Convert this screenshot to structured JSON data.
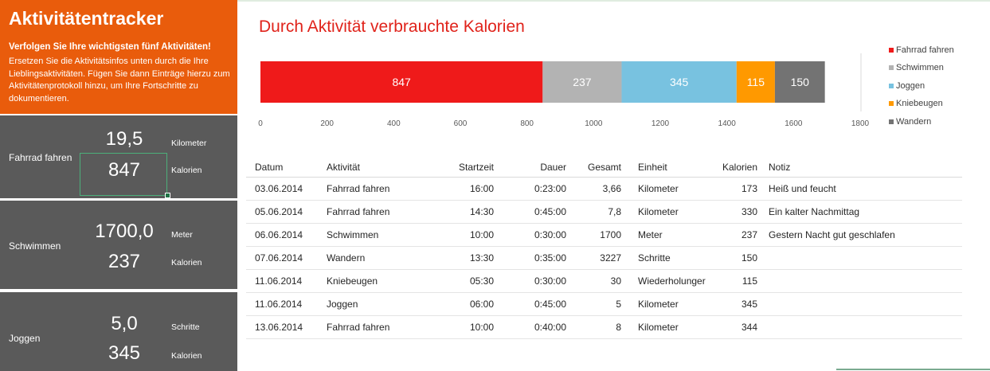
{
  "header": {
    "title": "Aktivitätentracker",
    "subtitle": "Verfolgen Sie Ihre wichtigsten fünf Aktivitäten!",
    "description": "Ersetzen Sie die Aktivitätsinfos unten durch die Ihre Lieblingsaktivitäten. Fügen Sie dann Einträge hierzu zum Aktivitätenprotokoll hinzu, um Ihre Fortschritte zu dokumentieren."
  },
  "activities": [
    {
      "name": "Fahrrad fahren",
      "value1": "19,5",
      "unit1": "Kilometer",
      "value2": "847",
      "unit2": "Kalorien"
    },
    {
      "name": "Schwimmen",
      "value1": "1700,0",
      "unit1": "Meter",
      "value2": "237",
      "unit2": "Kalorien"
    },
    {
      "name": "Joggen",
      "value1": "5,0",
      "unit1": "Schritte",
      "value2": "345",
      "unit2": "Kalorien"
    }
  ],
  "chart_data": {
    "type": "bar",
    "stacked": true,
    "orientation": "horizontal",
    "title": "Durch Aktivität verbrauchte Kalorien",
    "series": [
      {
        "name": "Fahrrad fahren",
        "values": [
          847
        ],
        "color": "#ef1a1a"
      },
      {
        "name": "Schwimmen",
        "values": [
          237
        ],
        "color": "#b3b3b3"
      },
      {
        "name": "Joggen",
        "values": [
          345
        ],
        "color": "#78c2e0"
      },
      {
        "name": "Kniebeugen",
        "values": [
          115
        ],
        "color": "#ff9900"
      },
      {
        "name": "Wandern",
        "values": [
          150
        ],
        "color": "#737373"
      }
    ],
    "xlim": [
      0,
      1800
    ],
    "xticks": [
      0,
      200,
      400,
      600,
      800,
      1000,
      1200,
      1400,
      1600,
      1800
    ],
    "legend": "right",
    "grid": false
  },
  "table": {
    "headers": {
      "date": "Datum",
      "activity": "Aktivität",
      "start": "Startzeit",
      "duration": "Dauer",
      "total": "Gesamt",
      "unit": "Einheit",
      "calories": "Kalorien",
      "note": "Notiz"
    },
    "rows": [
      {
        "date": "03.06.2014",
        "activity": "Fahrrad fahren",
        "start": "16:00",
        "duration": "0:23:00",
        "total": "3,66",
        "unit": "Kilometer",
        "calories": "173",
        "note": "Heiß und feucht"
      },
      {
        "date": "05.06.2014",
        "activity": "Fahrrad fahren",
        "start": "14:30",
        "duration": "0:45:00",
        "total": "7,8",
        "unit": "Kilometer",
        "calories": "330",
        "note": "Ein kalter Nachmittag"
      },
      {
        "date": "06.06.2014",
        "activity": "Schwimmen",
        "start": "10:00",
        "duration": "0:30:00",
        "total": "1700",
        "unit": "Meter",
        "calories": "237",
        "note": "Gestern Nacht gut geschlafen"
      },
      {
        "date": "07.06.2014",
        "activity": "Wandern",
        "start": "13:30",
        "duration": "0:35:00",
        "total": "3227",
        "unit": "Schritte",
        "calories": "150",
        "note": ""
      },
      {
        "date": "11.06.2014",
        "activity": "Kniebeugen",
        "start": "05:30",
        "duration": "0:30:00",
        "total": "30",
        "unit": "Wiederholunger",
        "calories": "115",
        "note": ""
      },
      {
        "date": "11.06.2014",
        "activity": "Joggen",
        "start": "06:00",
        "duration": "0:45:00",
        "total": "5",
        "unit": "Kilometer",
        "calories": "345",
        "note": ""
      },
      {
        "date": "13.06.2014",
        "activity": "Fahrrad fahren",
        "start": "10:00",
        "duration": "0:40:00",
        "total": "8",
        "unit": "Kilometer",
        "calories": "344",
        "note": ""
      }
    ]
  }
}
